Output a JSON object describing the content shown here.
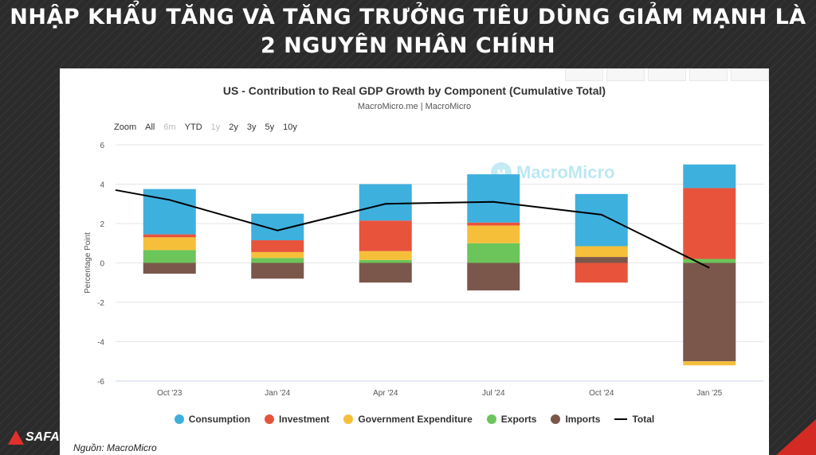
{
  "slide": {
    "title_line1": "NHẬP KHẨU TĂNG VÀ TĂNG TRƯỞNG TIÊU DÙNG GIẢM MẠNH LÀ",
    "title_line2": "2 NGUYÊN NHÂN CHÍNH",
    "source": "Nguồn: MacroMicro",
    "logo_text": "SAFA"
  },
  "zoom": {
    "label": "Zoom",
    "options": [
      "All",
      "6m",
      "YTD",
      "1y",
      "2y",
      "3y",
      "5y",
      "10y"
    ],
    "disabled": [
      "6m",
      "1y"
    ]
  },
  "watermark": "MacroMicro",
  "colors": {
    "Consumption": "#3eb0de",
    "Investment": "#e8533c",
    "Government Expenditure": "#f6bf3a",
    "Exports": "#6cc55a",
    "Imports": "#7b574b",
    "Total": "#000000"
  },
  "chart_data": {
    "type": "bar",
    "stacked": true,
    "title": "US - Contribution to Real GDP Growth by Component (Cumulative Total)",
    "subtitle": "MacroMicro.me | MacroMicro",
    "ylabel": "Percentage Point",
    "ylim": [
      -6,
      6
    ],
    "yticks": [
      -6,
      -4,
      -2,
      0,
      2,
      4,
      6
    ],
    "categories": [
      "Oct '23",
      "Jan '24",
      "Apr '24",
      "Jul '24",
      "Oct '24",
      "Jan '25"
    ],
    "series": [
      {
        "name": "Imports",
        "values": [
          -0.55,
          -0.8,
          -1.0,
          -1.4,
          0.3,
          -5.0
        ]
      },
      {
        "name": "Exports",
        "values": [
          0.65,
          0.25,
          0.15,
          1.0,
          0.0,
          0.2
        ]
      },
      {
        "name": "Government Expenditure",
        "values": [
          0.65,
          0.3,
          0.45,
          0.9,
          0.55,
          -0.2
        ]
      },
      {
        "name": "Investment",
        "values": [
          0.15,
          0.6,
          1.55,
          0.15,
          -1.0,
          3.6
        ]
      },
      {
        "name": "Consumption",
        "values": [
          2.3,
          1.35,
          1.85,
          2.45,
          2.65,
          1.2
        ]
      }
    ],
    "total": {
      "name": "Total",
      "x_start": 3.7,
      "values": [
        3.2,
        1.65,
        3.0,
        3.1,
        2.45,
        -0.25
      ]
    },
    "grid": true,
    "legend": "bottom"
  }
}
